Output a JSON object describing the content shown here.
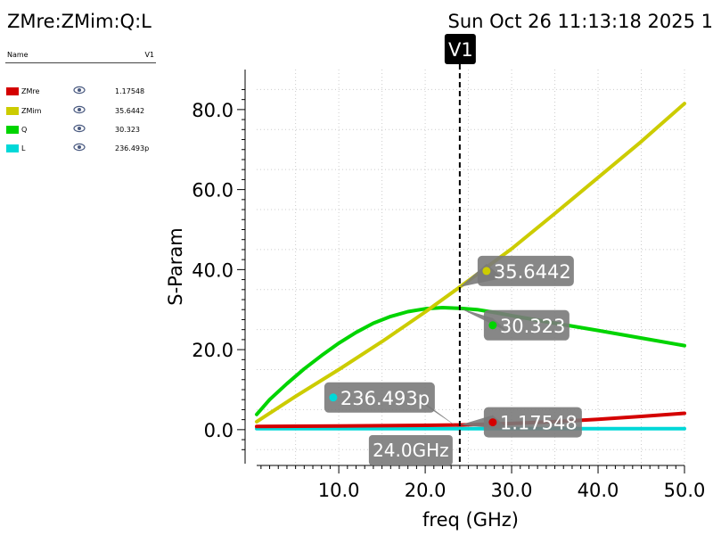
{
  "title": "ZMre:ZMim:Q:L",
  "timestamp": "Sun Oct 26 11:13:18 2025  1",
  "legend": {
    "header_name": "Name",
    "header_col": "V1",
    "items": [
      {
        "name": "ZMre",
        "value": "1.17548",
        "color": "#d40000"
      },
      {
        "name": "ZMim",
        "value": "35.6442",
        "color": "#cccc00"
      },
      {
        "name": "Q",
        "value": "30.323",
        "color": "#00d400"
      },
      {
        "name": "L",
        "value": "236.493p",
        "color": "#00d8d8"
      }
    ],
    "visibility_icon": "eye-icon"
  },
  "chart_data": {
    "type": "line",
    "xlabel": "freq (GHz)",
    "ylabel": "S-Param",
    "xlim": [
      0.5,
      50.0
    ],
    "ylim": [
      -8.5,
      90.0
    ],
    "xticks": [
      10.0,
      20.0,
      30.0,
      40.0,
      50.0
    ],
    "xtick_labels": [
      "10.0",
      "20.0",
      "30.0",
      "40.0",
      "50.0"
    ],
    "yticks": [
      0.0,
      20.0,
      40.0,
      60.0,
      80.0
    ],
    "ytick_labels": [
      "0.0",
      "20.0",
      "40.0",
      "60.0",
      "80.0"
    ],
    "grid": true,
    "series": [
      {
        "name": "ZMre",
        "color": "#d40000",
        "x": [
          0.5,
          5,
          10,
          15,
          20,
          24,
          30,
          35,
          40,
          45,
          50
        ],
        "y": [
          0.8,
          0.85,
          0.9,
          1.0,
          1.08,
          1.17548,
          1.55,
          2.0,
          2.6,
          3.3,
          4.1
        ]
      },
      {
        "name": "ZMim",
        "color": "#cccc00",
        "x": [
          0.5,
          5,
          10,
          15,
          20,
          24,
          30,
          35,
          40,
          45,
          50
        ],
        "y": [
          2.0,
          8.3,
          15.0,
          22.0,
          29.4,
          35.6442,
          45.2,
          54.0,
          63.0,
          72.0,
          81.5
        ]
      },
      {
        "name": "Q",
        "color": "#00d400",
        "x": [
          0.5,
          2,
          4,
          6,
          8,
          10,
          12,
          14,
          16,
          18,
          20,
          22,
          24,
          26,
          28,
          30,
          35,
          40,
          45,
          50
        ],
        "y": [
          3.8,
          7.5,
          11.5,
          15.2,
          18.5,
          21.6,
          24.3,
          26.6,
          28.3,
          29.5,
          30.2,
          30.5,
          30.323,
          30.0,
          29.3,
          28.5,
          26.6,
          24.8,
          22.9,
          21.0
        ]
      },
      {
        "name": "L",
        "color": "#00d8d8",
        "x": [
          0.5,
          50
        ],
        "y": [
          0.236,
          0.236
        ]
      }
    ],
    "marker": {
      "name": "V1",
      "x": 24.0,
      "x_label": "24.0GHz"
    },
    "annotations": [
      {
        "series": "ZMim",
        "text": "35.6442"
      },
      {
        "series": "Q",
        "text": "30.323"
      },
      {
        "series": "L",
        "text": "236.493p"
      },
      {
        "series": "ZMre",
        "text": "1.17548"
      }
    ]
  }
}
